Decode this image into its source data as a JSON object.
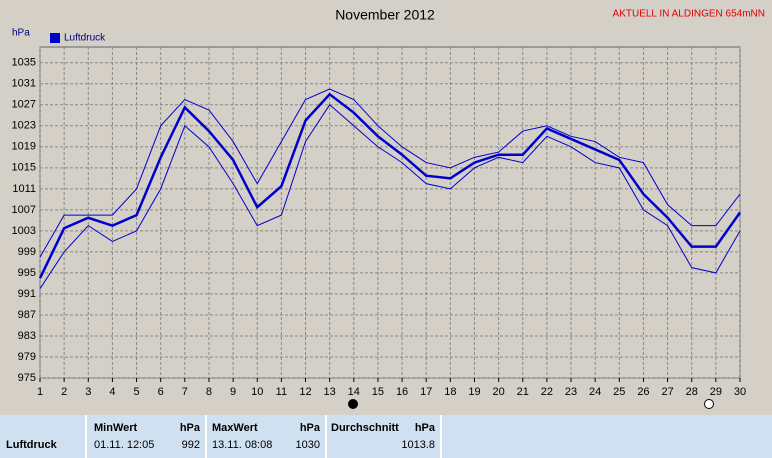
{
  "chart_data": {
    "type": "line",
    "title": "November 2012",
    "subtitle": "AKTUELL IN ALDINGEN 654mNN",
    "y_label": "hPa",
    "x": [
      1,
      2,
      3,
      4,
      5,
      6,
      7,
      8,
      9,
      10,
      11,
      12,
      13,
      14,
      15,
      16,
      17,
      18,
      19,
      20,
      21,
      22,
      23,
      24,
      25,
      26,
      27,
      28,
      29,
      30
    ],
    "xlim": [
      1,
      30
    ],
    "xticks": [
      1,
      2,
      3,
      4,
      5,
      6,
      7,
      8,
      9,
      10,
      11,
      12,
      13,
      14,
      15,
      16,
      17,
      18,
      19,
      20,
      21,
      22,
      23,
      24,
      25,
      26,
      27,
      28,
      29,
      30
    ],
    "ylim": [
      975,
      1038
    ],
    "yticks": [
      975,
      979,
      983,
      987,
      991,
      995,
      999,
      1003,
      1007,
      1011,
      1015,
      1019,
      1023,
      1027,
      1031,
      1035
    ],
    "grid": true,
    "series": [
      {
        "name": "Luftdruck",
        "color": "#0000cc",
        "values": [
          994,
          1003.5,
          1005.5,
          1004,
          1006,
          1017,
          1026.5,
          1022,
          1016.5,
          1007.5,
          1011.5,
          1024,
          1029,
          1025.5,
          1021,
          1017.5,
          1013.5,
          1013,
          1016,
          1017.5,
          1017.5,
          1022.5,
          1020.5,
          1018.5,
          1016.5,
          1010,
          1005.5,
          1000,
          1000,
          1006.5
        ]
      },
      {
        "color": "#0000cc",
        "values": [
          998,
          1006,
          1006,
          1006,
          1011,
          1023,
          1028,
          1026,
          1020,
          1012,
          1020,
          1028,
          1030,
          1028,
          1023,
          1019,
          1016,
          1015,
          1017,
          1018,
          1022,
          1023,
          1021,
          1020,
          1017,
          1016,
          1008,
          1004,
          1004,
          1010
        ]
      },
      {
        "color": "#0000cc",
        "values": [
          992,
          999,
          1004,
          1001,
          1003,
          1011,
          1023,
          1019,
          1012,
          1004,
          1006,
          1020,
          1027,
          1023,
          1019,
          1016,
          1012,
          1011,
          1015,
          1017,
          1016,
          1021,
          1019,
          1016,
          1015,
          1007,
          1004,
          996,
          995,
          1003
        ]
      }
    ]
  },
  "table": {
    "columns": [
      {
        "title": "MinWert",
        "unit": "hPa"
      },
      {
        "title": "MaxWert",
        "unit": "hPa"
      },
      {
        "title": "Durchschnitt",
        "unit": "hPa"
      }
    ],
    "rows": [
      {
        "label": "Luftdruck",
        "min_time": "01.11. 12:05",
        "min": "992",
        "max_time": "13.11. 08:08",
        "max": "1030",
        "avg": "1013.8"
      }
    ]
  }
}
